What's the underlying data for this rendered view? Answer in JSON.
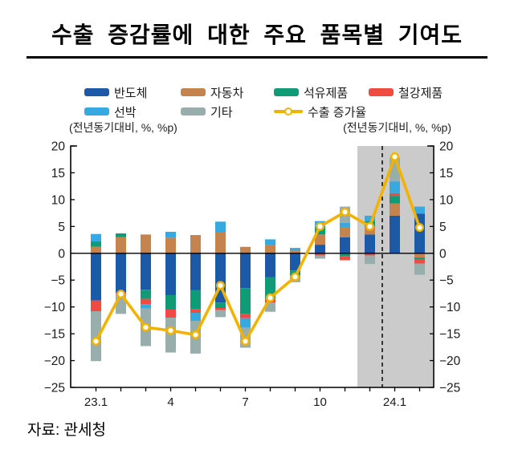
{
  "title": "수출 증감률에 대한 주요 품목별 기여도",
  "captions": {
    "left": "(전년동기대비, %, %p)",
    "right": "(전년동기대비, %, %p)"
  },
  "source": "자료: 관세청",
  "legend": {
    "items": [
      {
        "label": "반도체",
        "color": "#1c59a6",
        "type": "box"
      },
      {
        "label": "자동차",
        "color": "#c5834e",
        "type": "box"
      },
      {
        "label": "석유제품",
        "color": "#0e9b76",
        "type": "box"
      },
      {
        "label": "철강제품",
        "color": "#f04b42",
        "type": "box"
      },
      {
        "label": "선박",
        "color": "#36a9e0",
        "type": "box"
      },
      {
        "label": "기타",
        "color": "#97aeac",
        "type": "box"
      },
      {
        "label": "수출 증가율",
        "color": "#f2b200",
        "type": "line"
      }
    ]
  },
  "chart_data": {
    "type": "bar",
    "subtype": "stacked-bar-with-line",
    "title": "",
    "xlabel": "",
    "ylabel": "(전년동기대비, %, %p)",
    "categories": [
      "23.1",
      "23.2",
      "23.3",
      "23.4",
      "23.5",
      "23.6",
      "23.7",
      "23.8",
      "23.9",
      "23.10",
      "23.11",
      "23.12",
      "24.1",
      "24.2"
    ],
    "x_tick_labels": [
      {
        "label": "23.1",
        "index": 0
      },
      {
        "label": "4",
        "index": 3
      },
      {
        "label": "7",
        "index": 6
      },
      {
        "label": "10",
        "index": 9
      },
      {
        "label": "24.1",
        "index": 12
      }
    ],
    "series": [
      {
        "name": "반도체",
        "color": "#1c59a6",
        "values": [
          -8.8,
          -7.3,
          -6.8,
          -7.8,
          -6.9,
          -9.2,
          -6.5,
          -4.5,
          -3.2,
          1.6,
          3.0,
          3.5,
          7.0,
          7.4
        ]
      },
      {
        "name": "자동차",
        "color": "#c5834e",
        "values": [
          1.2,
          3.0,
          3.5,
          2.9,
          3.4,
          4.0,
          1.2,
          1.6,
          0.5,
          1.9,
          1.9,
          1.5,
          2.3,
          -0.8
        ]
      },
      {
        "name": "석유제품",
        "color": "#0e9b76",
        "values": [
          1.0,
          0.7,
          -1.7,
          -2.7,
          -3.5,
          -1.0,
          -4.8,
          -4.0,
          -1.0,
          1.4,
          -0.6,
          1.0,
          1.4,
          -0.4
        ]
      },
      {
        "name": "철강제품",
        "color": "#f04b42",
        "values": [
          -2.0,
          -0.3,
          -1.0,
          -1.5,
          -0.7,
          -0.4,
          -0.8,
          -0.7,
          0,
          -0.4,
          -0.7,
          -0.4,
          0.5,
          -0.7
        ]
      },
      {
        "name": "선박",
        "color": "#36a9e0",
        "values": [
          1.4,
          0,
          -0.8,
          1.1,
          -1.5,
          1.9,
          -1.8,
          1.0,
          0.5,
          1.1,
          0.8,
          1.0,
          2.2,
          1.3
        ]
      },
      {
        "name": "기타",
        "color": "#97aeac",
        "values": [
          -9.3,
          -3.7,
          -7.0,
          -6.5,
          -6.1,
          -1.3,
          -3.7,
          -1.7,
          -1.2,
          -0.6,
          3.0,
          -1.6,
          4.5,
          -2.1
        ]
      }
    ],
    "line_series": {
      "name": "수출 증가율",
      "color": "#f2b200",
      "values": [
        -16.4,
        -7.6,
        -13.8,
        -14.4,
        -15.2,
        -6.0,
        -16.4,
        -8.3,
        -4.4,
        5.0,
        7.7,
        5.0,
        18.0,
        4.8
      ]
    },
    "ylim": [
      -25,
      20
    ],
    "y_ticks": [
      20,
      15,
      10,
      5,
      0,
      -5,
      -10,
      -15,
      -20,
      -25
    ],
    "grid": false,
    "legend_position": "top",
    "highlight_region": {
      "start_category": "23.12",
      "end_category": "24.2",
      "color": "#cbcbcb"
    },
    "dashed_divider_between": [
      "23.12",
      "24.1"
    ]
  }
}
